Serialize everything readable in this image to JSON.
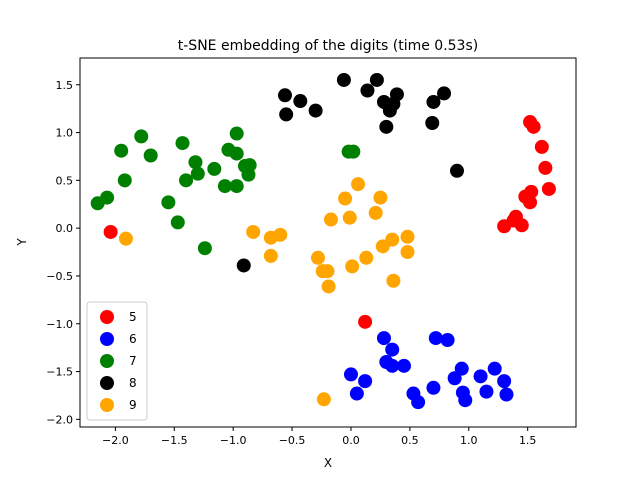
{
  "chart_data": {
    "type": "scatter",
    "title": "t-SNE embedding of the digits (time 0.53s)",
    "xlabel": "X",
    "ylabel": "Y",
    "xlim": [
      -2.3,
      1.91
    ],
    "ylim": [
      -2.08,
      1.78
    ],
    "xticks": [
      -2.0,
      -1.5,
      -1.0,
      -0.5,
      0.0,
      0.5,
      1.0,
      1.5
    ],
    "xtick_labels": [
      "−2.0",
      "−1.5",
      "−1.0",
      "−0.5",
      "0.0",
      "0.5",
      "1.0",
      "1.5"
    ],
    "yticks": [
      -2.0,
      -1.5,
      -1.0,
      -0.5,
      0.0,
      0.5,
      1.0,
      1.5
    ],
    "ytick_labels": [
      "−2.0",
      "−1.5",
      "−1.0",
      "−0.5",
      "0.0",
      "0.5",
      "1.0",
      "1.5"
    ],
    "grid": false,
    "legend_position": "lower-left",
    "series": [
      {
        "name": "5",
        "color": "#ff0000",
        "points": [
          [
            1.52,
            1.11
          ],
          [
            1.55,
            1.06
          ],
          [
            1.62,
            0.85
          ],
          [
            1.65,
            0.63
          ],
          [
            1.68,
            0.41
          ],
          [
            1.53,
            0.38
          ],
          [
            1.48,
            0.33
          ],
          [
            1.52,
            0.27
          ],
          [
            1.4,
            0.12
          ],
          [
            1.38,
            0.08
          ],
          [
            1.3,
            0.02
          ],
          [
            1.45,
            0.03
          ],
          [
            -2.04,
            -0.04
          ],
          [
            0.12,
            -0.98
          ]
        ]
      },
      {
        "name": "6",
        "color": "#0000ff",
        "points": [
          [
            0.28,
            -1.15
          ],
          [
            0.72,
            -1.15
          ],
          [
            0.82,
            -1.17
          ],
          [
            0.35,
            -1.27
          ],
          [
            0.3,
            -1.4
          ],
          [
            0.35,
            -1.44
          ],
          [
            0.45,
            -1.44
          ],
          [
            0.94,
            -1.47
          ],
          [
            1.22,
            -1.47
          ],
          [
            1.1,
            -1.55
          ],
          [
            0.0,
            -1.53
          ],
          [
            0.12,
            -1.6
          ],
          [
            0.88,
            -1.57
          ],
          [
            1.3,
            -1.6
          ],
          [
            0.7,
            -1.67
          ],
          [
            0.95,
            -1.72
          ],
          [
            1.15,
            -1.71
          ],
          [
            1.32,
            -1.74
          ],
          [
            0.05,
            -1.73
          ],
          [
            0.53,
            -1.73
          ],
          [
            0.57,
            -1.82
          ],
          [
            0.97,
            -1.8
          ]
        ]
      },
      {
        "name": "7",
        "color": "#008000",
        "points": [
          [
            -1.78,
            0.96
          ],
          [
            -1.95,
            0.81
          ],
          [
            -1.7,
            0.76
          ],
          [
            -1.43,
            0.89
          ],
          [
            -0.97,
            0.99
          ],
          [
            -1.04,
            0.82
          ],
          [
            -0.97,
            0.78
          ],
          [
            -1.32,
            0.69
          ],
          [
            -1.16,
            0.62
          ],
          [
            -0.9,
            0.65
          ],
          [
            -0.86,
            0.66
          ],
          [
            -1.3,
            0.57
          ],
          [
            -1.4,
            0.5
          ],
          [
            -0.87,
            0.56
          ],
          [
            -1.07,
            0.44
          ],
          [
            -0.97,
            0.44
          ],
          [
            -1.92,
            0.5
          ],
          [
            -2.07,
            0.32
          ],
          [
            -2.15,
            0.26
          ],
          [
            -1.55,
            0.27
          ],
          [
            -1.47,
            0.06
          ],
          [
            -1.24,
            -0.21
          ],
          [
            -0.02,
            0.8
          ],
          [
            0.02,
            0.8
          ]
        ]
      },
      {
        "name": "8",
        "color": "#000000",
        "points": [
          [
            -0.56,
            1.39
          ],
          [
            -0.43,
            1.33
          ],
          [
            -0.3,
            1.23
          ],
          [
            -0.55,
            1.19
          ],
          [
            -0.06,
            1.55
          ],
          [
            0.22,
            1.55
          ],
          [
            0.14,
            1.44
          ],
          [
            0.28,
            1.32
          ],
          [
            0.33,
            1.23
          ],
          [
            0.39,
            1.4
          ],
          [
            0.36,
            1.3
          ],
          [
            0.3,
            1.06
          ],
          [
            0.7,
            1.32
          ],
          [
            0.79,
            1.41
          ],
          [
            0.69,
            1.1
          ],
          [
            0.9,
            0.6
          ],
          [
            -0.91,
            -0.39
          ]
        ]
      },
      {
        "name": "9",
        "color": "#ffa500",
        "points": [
          [
            0.06,
            0.46
          ],
          [
            -0.05,
            0.31
          ],
          [
            0.25,
            0.32
          ],
          [
            -0.17,
            0.09
          ],
          [
            -0.01,
            0.11
          ],
          [
            0.21,
            0.16
          ],
          [
            -0.83,
            -0.04
          ],
          [
            -0.6,
            -0.07
          ],
          [
            -0.68,
            -0.1
          ],
          [
            -0.68,
            -0.29
          ],
          [
            -1.91,
            -0.11
          ],
          [
            0.27,
            -0.19
          ],
          [
            0.35,
            -0.12
          ],
          [
            0.48,
            -0.09
          ],
          [
            -0.28,
            -0.31
          ],
          [
            0.13,
            -0.31
          ],
          [
            0.48,
            -0.25
          ],
          [
            -0.24,
            -0.45
          ],
          [
            -0.2,
            -0.45
          ],
          [
            0.01,
            -0.4
          ],
          [
            -0.19,
            -0.61
          ],
          [
            0.36,
            -0.55
          ],
          [
            -0.23,
            -1.79
          ]
        ]
      }
    ]
  }
}
